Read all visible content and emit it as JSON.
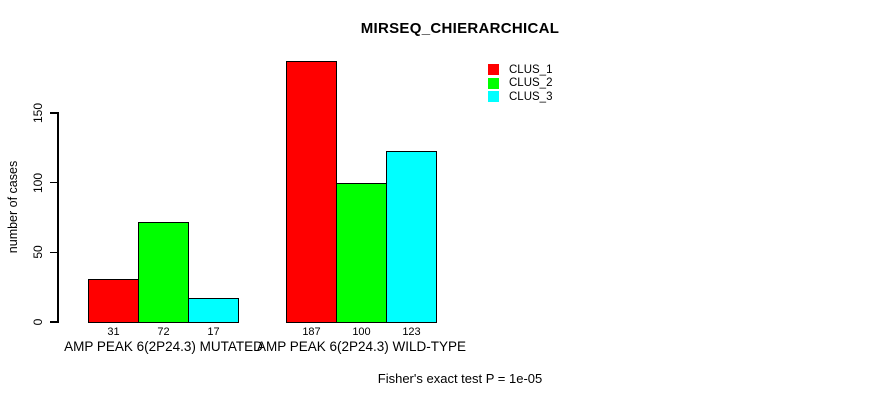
{
  "chart_data": {
    "type": "bar",
    "title": "MIRSEQ_CHIERARCHICAL",
    "ylabel": "number of cases",
    "xlabel": "",
    "yticks": [
      0,
      50,
      100,
      150
    ],
    "ylim": [
      0,
      150
    ],
    "grid": false,
    "legend_position": "top-right",
    "categories": [
      "AMP PEAK 6(2P24.3) MUTATED",
      "AMP PEAK 6(2P24.3) WILD-TYPE"
    ],
    "series": [
      {
        "name": "CLUS_1",
        "color": "#ff0000",
        "values": [
          31,
          187
        ]
      },
      {
        "name": "CLUS_2",
        "color": "#00ff00",
        "values": [
          72,
          100
        ]
      },
      {
        "name": "CLUS_3",
        "color": "#00ffff",
        "values": [
          17,
          123
        ]
      }
    ],
    "bar_value_labels": [
      [
        31,
        72,
        17
      ],
      [
        187,
        100,
        123
      ]
    ],
    "annotation": "Fisher's exact test P = 1e-05"
  },
  "colors": {
    "foreground": "#000000",
    "background": "#ffffff"
  }
}
